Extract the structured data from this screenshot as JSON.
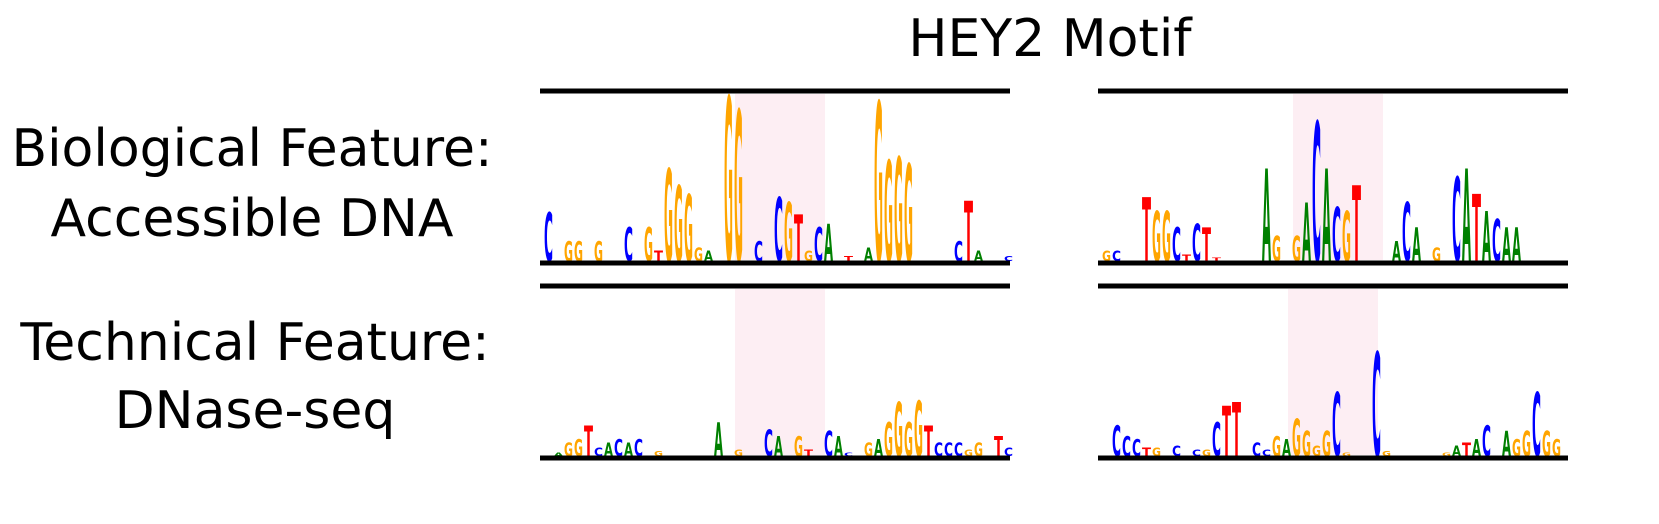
{
  "title": "HEY2 Motif",
  "rows": [
    {
      "label": [
        "Biological Feature:",
        "Accessible DNA"
      ]
    },
    {
      "label": [
        "Technical Feature:",
        "DNase-seq"
      ]
    }
  ],
  "colors": {
    "A": "#008000",
    "C": "#0000ff",
    "G": "#ffa500",
    "T": "#ff0000"
  },
  "panels": [
    {
      "row": 0,
      "col": 0,
      "columns": [
        {
          "i": 0,
          "letter": "C",
          "height": 0.29
        },
        {
          "i": 2,
          "letter": "G",
          "height": 0.12
        },
        {
          "i": 3,
          "letter": "G",
          "height": 0.12
        },
        {
          "i": 5,
          "letter": "G",
          "height": 0.12
        },
        {
          "i": 8,
          "letter": "C",
          "height": 0.2
        },
        {
          "i": 10,
          "letter": "G",
          "height": 0.2
        },
        {
          "i": 11,
          "letter": "T",
          "height": 0.06
        },
        {
          "i": 12,
          "letter": "G",
          "height": 0.55
        },
        {
          "i": 13,
          "letter": "G",
          "height": 0.45
        },
        {
          "i": 14,
          "letter": "G",
          "height": 0.4
        },
        {
          "i": 15,
          "letter": "G",
          "height": 0.08
        },
        {
          "i": 16,
          "letter": "A",
          "height": 0.06
        },
        {
          "i": 18,
          "letter": "G",
          "height": 0.98
        },
        {
          "i": 19,
          "letter": "G",
          "height": 0.9
        },
        {
          "i": 21,
          "letter": "C",
          "height": 0.12
        },
        {
          "i": 23,
          "letter": "C",
          "height": 0.38
        },
        {
          "i": 24,
          "letter": "G",
          "height": 0.35
        },
        {
          "i": 25,
          "letter": "T",
          "height": 0.28
        },
        {
          "i": 26,
          "letter": "G",
          "height": 0.06
        },
        {
          "i": 27,
          "letter": "C",
          "height": 0.2
        },
        {
          "i": 28,
          "letter": "A",
          "height": 0.22
        },
        {
          "i": 30,
          "letter": "T",
          "height": 0.03
        },
        {
          "i": 32,
          "letter": "A",
          "height": 0.08
        },
        {
          "i": 33,
          "letter": "G",
          "height": 0.95
        },
        {
          "i": 34,
          "letter": "G",
          "height": 0.6
        },
        {
          "i": 35,
          "letter": "G",
          "height": 0.62
        },
        {
          "i": 36,
          "letter": "G",
          "height": 0.58
        },
        {
          "i": 41,
          "letter": "C",
          "height": 0.12
        },
        {
          "i": 42,
          "letter": "T",
          "height": 0.36
        },
        {
          "i": 43,
          "letter": "A",
          "height": 0.06
        },
        {
          "i": 46,
          "letter": "C",
          "height": 0.03
        }
      ]
    },
    {
      "row": 0,
      "col": 1,
      "columns": [
        {
          "i": 0,
          "letter": "G",
          "height": 0.06
        },
        {
          "i": 1,
          "letter": "C",
          "height": 0.06
        },
        {
          "i": 4,
          "letter": "T",
          "height": 0.38
        },
        {
          "i": 5,
          "letter": "G",
          "height": 0.3
        },
        {
          "i": 6,
          "letter": "G",
          "height": 0.3
        },
        {
          "i": 7,
          "letter": "C",
          "height": 0.2
        },
        {
          "i": 8,
          "letter": "T",
          "height": 0.04
        },
        {
          "i": 9,
          "letter": "C",
          "height": 0.22
        },
        {
          "i": 10,
          "letter": "T",
          "height": 0.2
        },
        {
          "i": 11,
          "letter": "T",
          "height": 0.02
        },
        {
          "i": 16,
          "letter": "A",
          "height": 0.55
        },
        {
          "i": 17,
          "letter": "G",
          "height": 0.15
        },
        {
          "i": 19,
          "letter": "G",
          "height": 0.15
        },
        {
          "i": 20,
          "letter": "A",
          "height": 0.35
        },
        {
          "i": 21,
          "letter": "C",
          "height": 0.83
        },
        {
          "i": 22,
          "letter": "A",
          "height": 0.55
        },
        {
          "i": 23,
          "letter": "C",
          "height": 0.32
        },
        {
          "i": 24,
          "letter": "G",
          "height": 0.3
        },
        {
          "i": 25,
          "letter": "T",
          "height": 0.45
        },
        {
          "i": 29,
          "letter": "A",
          "height": 0.12
        },
        {
          "i": 30,
          "letter": "C",
          "height": 0.35
        },
        {
          "i": 31,
          "letter": "A",
          "height": 0.2
        },
        {
          "i": 33,
          "letter": "G",
          "height": 0.08
        },
        {
          "i": 35,
          "letter": "C",
          "height": 0.5
        },
        {
          "i": 36,
          "letter": "A",
          "height": 0.55
        },
        {
          "i": 37,
          "letter": "T",
          "height": 0.4
        },
        {
          "i": 38,
          "letter": "A",
          "height": 0.3
        },
        {
          "i": 39,
          "letter": "C",
          "height": 0.25
        },
        {
          "i": 40,
          "letter": "A",
          "height": 0.2
        },
        {
          "i": 41,
          "letter": "A",
          "height": 0.2
        }
      ]
    },
    {
      "row": 1,
      "col": 0,
      "columns": [
        {
          "i": 1,
          "letter": "A",
          "height": 0.02
        },
        {
          "i": 2,
          "letter": "G",
          "height": 0.08
        },
        {
          "i": 3,
          "letter": "G",
          "height": 0.1
        },
        {
          "i": 4,
          "letter": "T",
          "height": 0.18
        },
        {
          "i": 5,
          "letter": "C",
          "height": 0.05
        },
        {
          "i": 6,
          "letter": "A",
          "height": 0.08
        },
        {
          "i": 7,
          "letter": "C",
          "height": 0.1
        },
        {
          "i": 8,
          "letter": "A",
          "height": 0.08
        },
        {
          "i": 9,
          "letter": "C",
          "height": 0.1
        },
        {
          "i": 11,
          "letter": "G",
          "height": 0.03
        },
        {
          "i": 17,
          "letter": "A",
          "height": 0.2
        },
        {
          "i": 19,
          "letter": "G",
          "height": 0.04
        },
        {
          "i": 22,
          "letter": "C",
          "height": 0.16
        },
        {
          "i": 23,
          "letter": "A",
          "height": 0.12
        },
        {
          "i": 25,
          "letter": "G",
          "height": 0.12
        },
        {
          "i": 26,
          "letter": "T",
          "height": 0.04
        },
        {
          "i": 28,
          "letter": "C",
          "height": 0.15
        },
        {
          "i": 29,
          "letter": "A",
          "height": 0.12
        },
        {
          "i": 30,
          "letter": "C",
          "height": 0.02
        },
        {
          "i": 32,
          "letter": "G",
          "height": 0.08
        },
        {
          "i": 33,
          "letter": "A",
          "height": 0.1
        },
        {
          "i": 34,
          "letter": "G",
          "height": 0.2
        },
        {
          "i": 35,
          "letter": "G",
          "height": 0.32
        },
        {
          "i": 36,
          "letter": "G",
          "height": 0.2
        },
        {
          "i": 37,
          "letter": "G",
          "height": 0.33
        },
        {
          "i": 38,
          "letter": "T",
          "height": 0.18
        },
        {
          "i": 39,
          "letter": "C",
          "height": 0.08
        },
        {
          "i": 40,
          "letter": "C",
          "height": 0.08
        },
        {
          "i": 41,
          "letter": "C",
          "height": 0.08
        },
        {
          "i": 42,
          "letter": "G",
          "height": 0.04
        },
        {
          "i": 43,
          "letter": "G",
          "height": 0.08
        },
        {
          "i": 45,
          "letter": "T",
          "height": 0.12
        },
        {
          "i": 46,
          "letter": "C",
          "height": 0.05
        }
      ]
    },
    {
      "row": 1,
      "col": 1,
      "columns": [
        {
          "i": 1,
          "letter": "C",
          "height": 0.18
        },
        {
          "i": 2,
          "letter": "C",
          "height": 0.12
        },
        {
          "i": 3,
          "letter": "C",
          "height": 0.1
        },
        {
          "i": 4,
          "letter": "T",
          "height": 0.05
        },
        {
          "i": 5,
          "letter": "G",
          "height": 0.05
        },
        {
          "i": 7,
          "letter": "C",
          "height": 0.06
        },
        {
          "i": 9,
          "letter": "C",
          "height": 0.04
        },
        {
          "i": 10,
          "letter": "G",
          "height": 0.04
        },
        {
          "i": 11,
          "letter": "C",
          "height": 0.2
        },
        {
          "i": 12,
          "letter": "T",
          "height": 0.3
        },
        {
          "i": 13,
          "letter": "T",
          "height": 0.32
        },
        {
          "i": 15,
          "letter": "C",
          "height": 0.08
        },
        {
          "i": 16,
          "letter": "C",
          "height": 0.04
        },
        {
          "i": 17,
          "letter": "G",
          "height": 0.12
        },
        {
          "i": 18,
          "letter": "A",
          "height": 0.1
        },
        {
          "i": 19,
          "letter": "G",
          "height": 0.22
        },
        {
          "i": 20,
          "letter": "G",
          "height": 0.15
        },
        {
          "i": 21,
          "letter": "G",
          "height": 0.06
        },
        {
          "i": 22,
          "letter": "G",
          "height": 0.15
        },
        {
          "i": 23,
          "letter": "C",
          "height": 0.38
        },
        {
          "i": 24,
          "letter": "G",
          "height": 0.02
        },
        {
          "i": 27,
          "letter": "C",
          "height": 0.62
        },
        {
          "i": 28,
          "letter": "G",
          "height": 0.03
        },
        {
          "i": 34,
          "letter": "G",
          "height": 0.02
        },
        {
          "i": 35,
          "letter": "A",
          "height": 0.06
        },
        {
          "i": 36,
          "letter": "T",
          "height": 0.08
        },
        {
          "i": 37,
          "letter": "A",
          "height": 0.1
        },
        {
          "i": 38,
          "letter": "C",
          "height": 0.18
        },
        {
          "i": 40,
          "letter": "A",
          "height": 0.15
        },
        {
          "i": 41,
          "letter": "G",
          "height": 0.1
        },
        {
          "i": 42,
          "letter": "G",
          "height": 0.15
        },
        {
          "i": 43,
          "letter": "C",
          "height": 0.38
        },
        {
          "i": 44,
          "letter": "G",
          "height": 0.15
        },
        {
          "i": 45,
          "letter": "G",
          "height": 0.1
        }
      ]
    }
  ]
}
